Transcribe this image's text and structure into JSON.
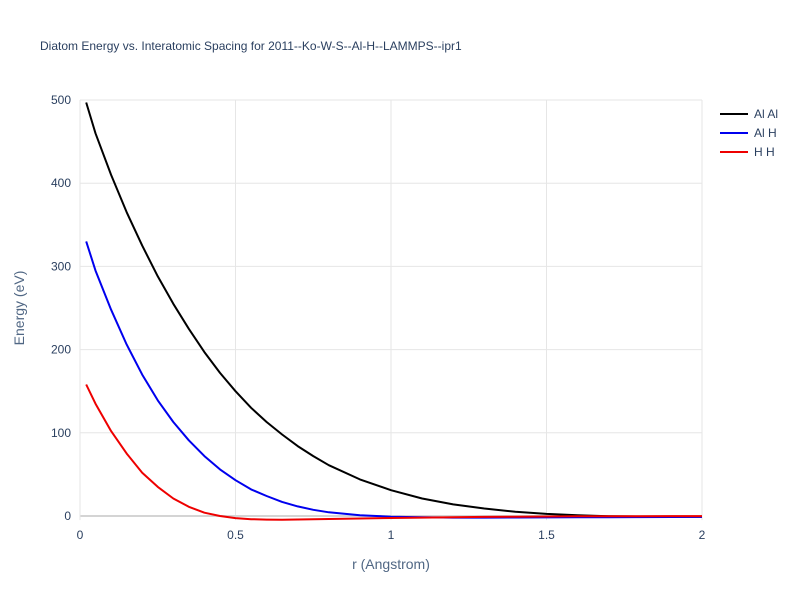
{
  "chart_data": {
    "type": "line",
    "title": "Diatom Energy vs. Interatomic Spacing for 2011--Ko-W-S--Al-H--LAMMPS--ipr1",
    "xlabel": "r (Angstrom)",
    "ylabel": "Energy (eV)",
    "xlim": [
      0,
      2
    ],
    "ylim": [
      -5,
      500
    ],
    "x_ticks": [
      "0",
      "0.5",
      "1",
      "1.5",
      "2"
    ],
    "y_ticks": [
      "0",
      "100",
      "200",
      "300",
      "400",
      "500"
    ],
    "grid": true,
    "legend_position": "top-right",
    "x": [
      0.02,
      0.05,
      0.1,
      0.15,
      0.2,
      0.25,
      0.3,
      0.35,
      0.4,
      0.45,
      0.5,
      0.55,
      0.6,
      0.65,
      0.7,
      0.75,
      0.8,
      0.9,
      1.0,
      1.1,
      1.2,
      1.3,
      1.4,
      1.5,
      1.6,
      1.7,
      1.8,
      1.9,
      2.0
    ],
    "series": [
      {
        "name": "Al Al",
        "color": "#000000",
        "values": [
          497,
          460,
          410,
          365,
          325,
          288,
          255,
          225,
          197,
          172,
          150,
          130,
          113,
          98,
          84,
          72,
          61,
          44,
          31,
          21,
          14,
          9,
          5,
          2.5,
          0.8,
          -0.2,
          -0.6,
          -0.8,
          -0.8
        ]
      },
      {
        "name": "Al H",
        "color": "#0000ee",
        "values": [
          330,
          295,
          248,
          206,
          170,
          139,
          113,
          91,
          72,
          56,
          43,
          32,
          24,
          17,
          11.5,
          7.5,
          4.5,
          1.0,
          -0.8,
          -1.6,
          -1.9,
          -1.9,
          -1.8,
          -1.7,
          -1.5,
          -1.4,
          -1.3,
          -1.2,
          -1.1
        ]
      },
      {
        "name": "H H",
        "color": "#ee0000",
        "values": [
          158,
          135,
          102,
          75,
          52,
          35,
          21,
          11,
          4,
          0,
          -2.5,
          -3.8,
          -4.3,
          -4.4,
          -4.2,
          -3.9,
          -3.6,
          -3.0,
          -2.4,
          -1.9,
          -1.5,
          -1.1,
          -0.8,
          -0.6,
          -0.4,
          -0.3,
          -0.2,
          -0.1,
          -0.1
        ]
      }
    ]
  }
}
